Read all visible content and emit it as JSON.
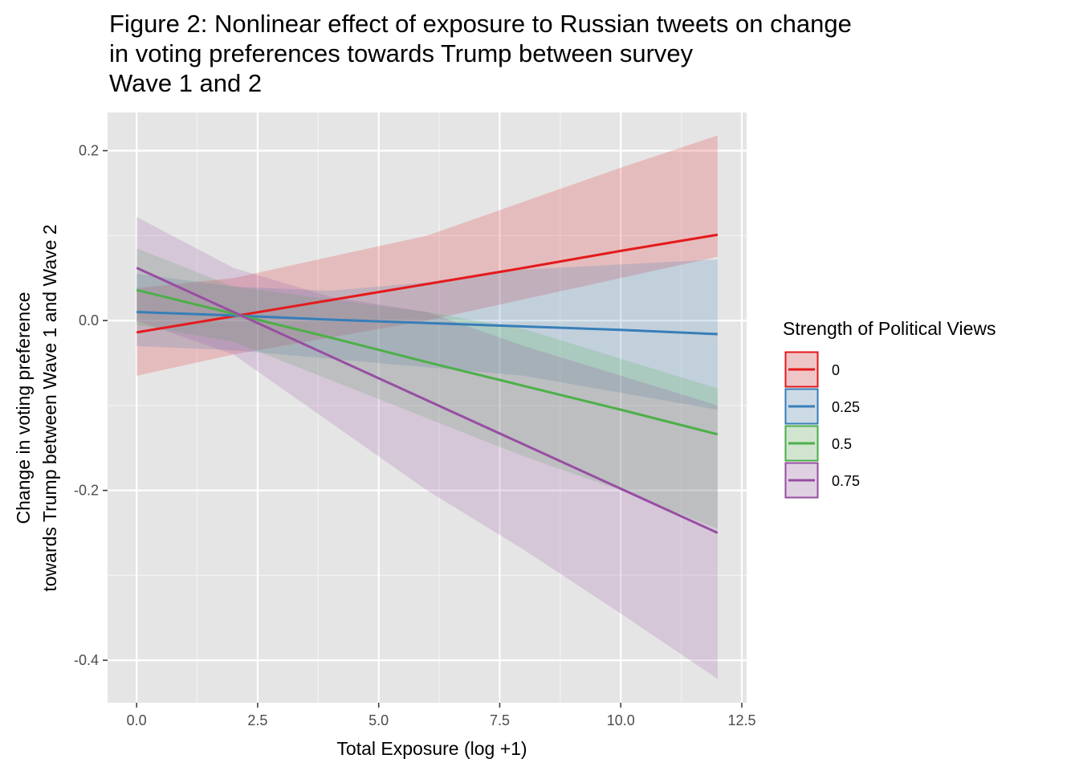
{
  "chart_data": {
    "type": "line",
    "title_lines": [
      "Figure 2: Nonlinear effect of exposure to Russian tweets on change",
      "in voting preferences towards Trump between survey",
      "Wave 1 and 2"
    ],
    "xlabel": "Total Exposure (log +1)",
    "ylabel_lines": [
      "Change in voting preference",
      "towards Trump between Wave 1 and Wave 2"
    ],
    "xlim": [
      -0.6,
      12.6
    ],
    "ylim": [
      -0.45,
      0.245
    ],
    "x_ticks": [
      0,
      2.5,
      5,
      7.5,
      10,
      12.5
    ],
    "x_tick_labels": [
      "0.0",
      "2.5",
      "5.0",
      "7.5",
      "10.0",
      "12.5"
    ],
    "y_ticks": [
      -0.4,
      -0.2,
      0,
      0.2
    ],
    "y_tick_labels": [
      "-0.4",
      "-0.2",
      "0.0",
      "0.2"
    ],
    "grid": true,
    "legend_title": "Strength of Political Views",
    "legend_position": "right",
    "series": [
      {
        "name": "0",
        "color": "#e41a1c",
        "x": [
          0,
          2,
          4,
          6,
          8,
          10,
          12
        ],
        "y": [
          -0.014,
          0.005,
          0.024,
          0.043,
          0.062,
          0.082,
          0.101
        ],
        "lower": [
          -0.065,
          -0.04,
          -0.02,
          0.0,
          0.025,
          0.05,
          0.075
        ],
        "upper": [
          0.038,
          0.05,
          0.075,
          0.1,
          0.14,
          0.18,
          0.218
        ]
      },
      {
        "name": "0.25",
        "color": "#377eb8",
        "x": [
          0,
          2,
          4,
          6,
          8,
          10,
          12
        ],
        "y": [
          0.01,
          0.006,
          0.001,
          -0.003,
          -0.007,
          -0.011,
          -0.016
        ],
        "lower": [
          -0.03,
          -0.035,
          -0.045,
          -0.055,
          -0.065,
          -0.085,
          -0.105
        ],
        "upper": [
          0.055,
          0.04,
          0.035,
          0.045,
          0.06,
          0.066,
          0.072
        ]
      },
      {
        "name": "0.5",
        "color": "#4daf4a",
        "x": [
          0,
          2,
          4,
          6,
          8,
          10,
          12
        ],
        "y": [
          0.036,
          0.008,
          -0.02,
          -0.049,
          -0.077,
          -0.105,
          -0.134
        ],
        "lower": [
          -0.005,
          -0.025,
          -0.07,
          -0.115,
          -0.16,
          -0.2,
          -0.245
        ],
        "upper": [
          0.085,
          0.04,
          0.025,
          0.01,
          -0.01,
          -0.045,
          -0.08
        ]
      },
      {
        "name": "0.75",
        "color": "#984ea3",
        "x": [
          0,
          2,
          4,
          6,
          8,
          10,
          12
        ],
        "y": [
          0.062,
          0.01,
          -0.042,
          -0.094,
          -0.146,
          -0.198,
          -0.25
        ],
        "lower": [
          0.0,
          -0.04,
          -0.12,
          -0.2,
          -0.27,
          -0.345,
          -0.422
        ],
        "upper": [
          0.122,
          0.062,
          0.028,
          0.01,
          -0.03,
          -0.065,
          -0.1
        ]
      }
    ]
  }
}
